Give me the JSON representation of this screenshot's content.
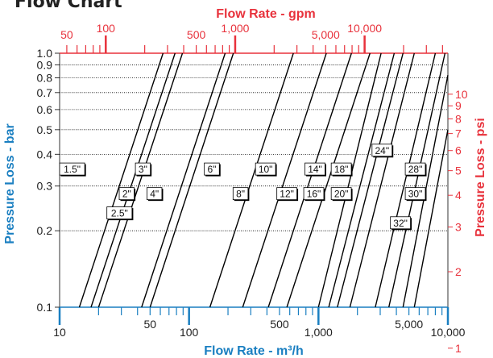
{
  "page_heading": "Flow Chart",
  "chart_data": {
    "type": "line",
    "scale": "log-log",
    "grid": true,
    "colors": {
      "top_axis": "#e8323c",
      "bottom_axis": "#1a7fc1",
      "line": "#000000",
      "grid": "#000000"
    },
    "x_bottom": {
      "label": "Flow Rate - m³/h",
      "range": [
        10,
        10000
      ],
      "major_ticks": [
        10,
        100,
        1000,
        10000
      ],
      "minor_ticks": [
        20,
        30,
        40,
        50,
        60,
        70,
        80,
        90,
        200,
        300,
        400,
        500,
        600,
        700,
        800,
        900,
        2000,
        3000,
        4000,
        5000,
        6000,
        7000,
        8000,
        9000
      ],
      "tick_labels": [
        {
          "value": 10,
          "text": "10"
        },
        {
          "value": 50,
          "text": "50"
        },
        {
          "value": 100,
          "text": "100"
        },
        {
          "value": 500,
          "text": "500"
        },
        {
          "value": 1000,
          "text": "1,000"
        },
        {
          "value": 5000,
          "text": "5,000"
        },
        {
          "value": 10000,
          "text": "10,000"
        }
      ]
    },
    "x_top": {
      "label": "Flow Rate - gpm",
      "range": [
        44,
        44000
      ],
      "major_ticks": [
        100,
        1000,
        10000
      ],
      "minor_ticks": [
        50,
        60,
        70,
        80,
        90,
        200,
        300,
        400,
        500,
        600,
        700,
        800,
        900,
        2000,
        3000,
        4000,
        5000,
        6000,
        7000,
        8000,
        9000,
        20000,
        30000,
        40000
      ],
      "tick_labels": [
        {
          "value": 50,
          "text": "50"
        },
        {
          "value": 100,
          "text": "100"
        },
        {
          "value": 500,
          "text": "500"
        },
        {
          "value": 1000,
          "text": "1,000"
        },
        {
          "value": 5000,
          "text": "5,000"
        },
        {
          "value": 10000,
          "text": "10,000"
        }
      ]
    },
    "y_left": {
      "label": "Pressure Loss - bar",
      "range": [
        0.1,
        1.0
      ],
      "ticks": [
        {
          "value": 0.1,
          "text": "0.1"
        },
        {
          "value": 0.2,
          "text": "0.2"
        },
        {
          "value": 0.3,
          "text": "0.3"
        },
        {
          "value": 0.4,
          "text": "0.4"
        },
        {
          "value": 0.5,
          "text": "0.5"
        },
        {
          "value": 0.6,
          "text": "0.6"
        },
        {
          "value": 0.7,
          "text": "0.7"
        },
        {
          "value": 0.8,
          "text": "0.8"
        },
        {
          "value": 0.9,
          "text": "0.9"
        },
        {
          "value": 1.0,
          "text": "1.0"
        }
      ]
    },
    "y_right": {
      "label": "Pressure Loss - psi",
      "range": [
        1.45,
        14.5
      ],
      "ticks": [
        {
          "value": 1,
          "text": "1"
        },
        {
          "value": 2,
          "text": "2"
        },
        {
          "value": 3,
          "text": "3"
        },
        {
          "value": 4,
          "text": "4"
        },
        {
          "value": 5,
          "text": "5"
        },
        {
          "value": 6,
          "text": "6"
        },
        {
          "value": 7,
          "text": "7"
        },
        {
          "value": 8,
          "text": "8"
        },
        {
          "value": 9,
          "text": "9"
        },
        {
          "value": 10,
          "text": "10"
        }
      ]
    },
    "series": [
      {
        "name": "1.5\"",
        "points": [
          [
            14.2,
            0.1
          ],
          [
            63,
            1.0
          ]
        ],
        "label_at": [
          12.5,
          0.35
        ]
      },
      {
        "name": "2\"",
        "points": [
          [
            17.5,
            0.1
          ],
          [
            78,
            1.0
          ]
        ],
        "label_at": [
          33,
          0.28
        ]
      },
      {
        "name": "2.5\"",
        "points": [
          [
            20,
            0.1
          ],
          [
            89,
            1.0
          ]
        ],
        "label_at": [
          29,
          0.235
        ]
      },
      {
        "name": "3\"",
        "points": [
          [
            43,
            0.1
          ],
          [
            190,
            1.0
          ]
        ],
        "label_at": [
          44,
          0.35
        ]
      },
      {
        "name": "4\"",
        "points": [
          [
            50,
            0.1
          ],
          [
            220,
            1.0
          ]
        ],
        "label_at": [
          54,
          0.28
        ]
      },
      {
        "name": "6\"",
        "points": [
          [
            145,
            0.1
          ],
          [
            640,
            1.0
          ]
        ],
        "label_at": [
          150,
          0.35
        ]
      },
      {
        "name": "8\"",
        "points": [
          [
            260,
            0.1
          ],
          [
            1150,
            1.0
          ]
        ],
        "label_at": [
          250,
          0.28
        ]
      },
      {
        "name": "10\"",
        "points": [
          [
            410,
            0.1
          ],
          [
            1800,
            1.0
          ]
        ],
        "label_at": [
          390,
          0.35
        ]
      },
      {
        "name": "12\"",
        "points": [
          [
            570,
            0.1
          ],
          [
            2500,
            1.0
          ]
        ],
        "label_at": [
          570,
          0.28
        ]
      },
      {
        "name": "14\"",
        "points": [
          [
            1000,
            0.1
          ],
          [
            3050,
            1.0
          ]
        ],
        "label_at": [
          940,
          0.35
        ]
      },
      {
        "name": "16\"",
        "points": [
          [
            1200,
            0.1
          ],
          [
            3850,
            1.0
          ]
        ],
        "label_at": [
          920,
          0.28
        ]
      },
      {
        "name": "18\"",
        "points": [
          [
            1400,
            0.1
          ],
          [
            4500,
            1.0
          ]
        ],
        "label_at": [
          1500,
          0.35
        ]
      },
      {
        "name": "20\"",
        "points": [
          [
            1750,
            0.1
          ],
          [
            5500,
            1.0
          ]
        ],
        "label_at": [
          1500,
          0.28
        ]
      },
      {
        "name": "24\"",
        "points": [
          [
            2750,
            0.1
          ],
          [
            8000,
            1.0
          ]
        ],
        "label_at": [
          3100,
          0.415
        ]
      },
      {
        "name": "28\"",
        "points": [
          [
            3500,
            0.1
          ],
          [
            9500,
            1.0
          ]
        ],
        "label_at": [
          5600,
          0.35
        ]
      },
      {
        "name": "30\"",
        "points": [
          [
            4500,
            0.1
          ],
          [
            10000,
            0.82
          ]
        ],
        "label_at": [
          5600,
          0.28
        ]
      },
      {
        "name": "32\"",
        "points": [
          [
            5500,
            0.1
          ],
          [
            10000,
            0.5
          ]
        ],
        "label_at": [
          4300,
          0.215
        ]
      }
    ]
  }
}
